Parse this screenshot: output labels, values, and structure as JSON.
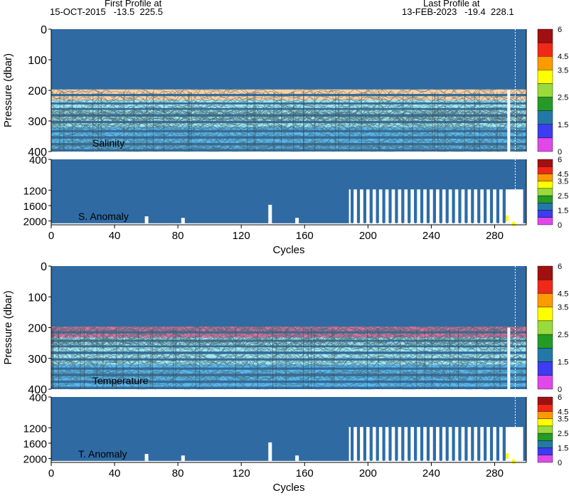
{
  "header": {
    "first_label": "First Profile at",
    "first_value": "15-OCT-2015   -13.5  225.5",
    "last_label": "Last Profile at",
    "last_value": "13-FEB-2023   -19.4  228.1"
  },
  "colors": {
    "profile_blue": "#2f6aa3",
    "anomaly_dots": "#2d6ca8",
    "salinity_band_orange": "#fbcfa0",
    "temperature_band_pink": "#f26ba0",
    "band_cyan": "#9fe6f0",
    "band_light_blue": "#58b8ee",
    "contour": "#4a6e7a"
  },
  "colorbar": {
    "tick_labels": [
      "6",
      "4.5",
      "3.5",
      "2.5",
      "1.5",
      "0"
    ],
    "colors": [
      "#a01010",
      "#f02818",
      "#ff9a00",
      "#ffff00",
      "#9ada3c",
      "#249b24",
      "#2478a8",
      "#3c3cf0",
      "#e048e8"
    ]
  },
  "chart_data": [
    {
      "type": "heatmap",
      "label": "Salinity",
      "ylabel": "Pressure (dbar)",
      "ylim": [
        400,
        0
      ],
      "y_ticks": [
        "0",
        "100",
        "200",
        "300",
        "400"
      ],
      "xlim": [
        0,
        300
      ],
      "band_color": "orange",
      "colorbar_range": [
        0,
        6
      ]
    },
    {
      "type": "scatter",
      "label": "S. Anomaly",
      "ylim": [
        2100,
        400
      ],
      "y_ticks": [
        "400",
        "1200",
        "1600",
        "2000"
      ],
      "xlabel": "Cycles",
      "x_ticks": [
        "0",
        "40",
        "80",
        "120",
        "160",
        "200",
        "240",
        "280"
      ],
      "xlim": [
        0,
        300
      ],
      "colorbar_range": [
        0,
        6
      ]
    },
    {
      "type": "heatmap",
      "label": "Temperature",
      "ylabel": "Pressure (dbar)",
      "ylim": [
        400,
        0
      ],
      "y_ticks": [
        "0",
        "100",
        "200",
        "300",
        "400"
      ],
      "xlim": [
        0,
        300
      ],
      "band_color": "pink",
      "colorbar_range": [
        0,
        6
      ]
    },
    {
      "type": "scatter",
      "label": "T. Anomaly",
      "ylim": [
        2100,
        400
      ],
      "y_ticks": [
        "400",
        "1200",
        "1600",
        "2000"
      ],
      "xlabel": "Cycles",
      "x_ticks": [
        "0",
        "40",
        "80",
        "120",
        "160",
        "200",
        "240",
        "280"
      ],
      "xlim": [
        0,
        300
      ],
      "colorbar_range": [
        0,
        6
      ]
    }
  ]
}
